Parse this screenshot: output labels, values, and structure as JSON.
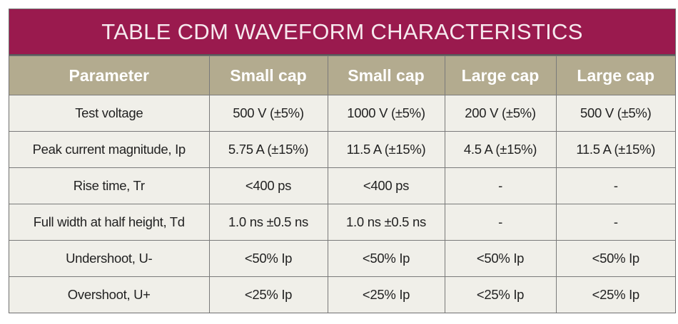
{
  "title": "TABLE CDM WAVEFORM CHARACTERISTICS",
  "colors": {
    "title_bg": "#9a1a4e",
    "header_bg": "#b3ab8f",
    "cell_bg": "#f0efe9"
  },
  "columns": [
    "Parameter",
    "Small cap",
    "Small cap",
    "Large cap",
    "Large cap"
  ],
  "rows": [
    [
      "Test voltage",
      "500 V (±5%)",
      "1000 V (±5%)",
      "200 V (±5%)",
      "500 V (±5%)"
    ],
    [
      "Peak current magnitude, Ip",
      "5.75 A (±15%)",
      "11.5 A (±15%)",
      "4.5 A (±15%)",
      "11.5 A (±15%)"
    ],
    [
      "Rise time, Tr",
      "<400 ps",
      "<400 ps",
      "-",
      "-"
    ],
    [
      "Full width at half height, Td",
      "1.0 ns ±0.5 ns",
      "1.0 ns ±0.5 ns",
      "-",
      "-"
    ],
    [
      "Undershoot, U-",
      "<50% Ip",
      "<50% Ip",
      "<50% Ip",
      "<50% Ip"
    ],
    [
      "Overshoot, U+",
      "<25% Ip",
      "<25% Ip",
      "<25% Ip",
      "<25% Ip"
    ]
  ]
}
